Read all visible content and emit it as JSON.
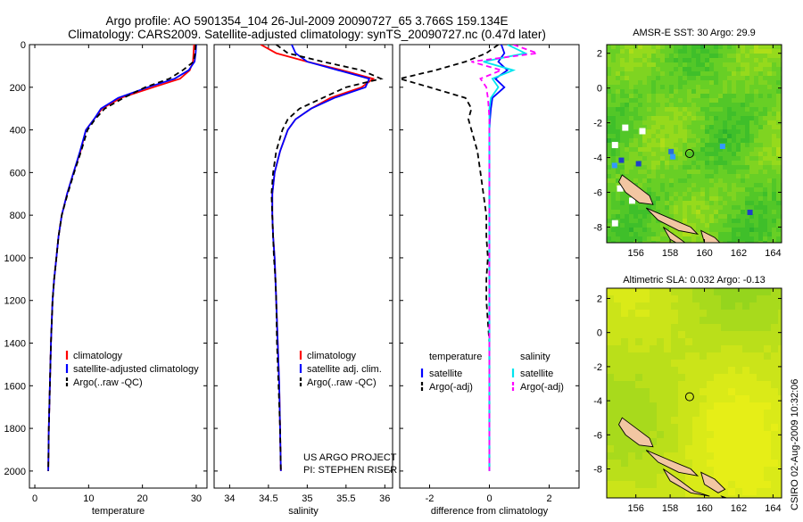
{
  "header": {
    "line1": "Argo profile: AO 5901354_104 26-Jul-2009 20090727_65 3.766S 159.134E",
    "line2": "Climatology: CARS2009. Satellite-adjusted climatology: synTS_20090727.nc (0.47d later)"
  },
  "footer": {
    "project": "US ARGO PROJECT",
    "pi": "PI: STEPHEN RISER",
    "stamp": "CSIRO 02-Aug-2009 10:32:06"
  },
  "colors": {
    "climatology": "#ff0000",
    "satellite": "#0000ff",
    "argo": "#000000",
    "sat_diff_sal": "#00e5ee",
    "argo_diff_sal": "#ff00ff"
  },
  "chart_data": [
    {
      "type": "line",
      "xlabel": "temperature",
      "ylabel": "",
      "xlim": [
        -1,
        32
      ],
      "ylim": [
        2080,
        0
      ],
      "xticks": [
        0,
        10,
        20,
        30
      ],
      "yticks": [
        0,
        200,
        400,
        600,
        800,
        1000,
        1200,
        1400,
        1600,
        1800,
        2000
      ],
      "legend": {
        "placement": "lower-center",
        "entries": [
          "climatology",
          "satellite-adjusted climatology",
          "Argo(..raw -QC)"
        ]
      },
      "series": [
        {
          "name": "climatology",
          "color": "#ff0000",
          "dash": "",
          "x": [
            29.6,
            29.5,
            29.4,
            28.8,
            27.0,
            22.0,
            16.0,
            12.5,
            11.0,
            9.5,
            8.5,
            7.2,
            6.0,
            5.0,
            4.4,
            4.0,
            3.6,
            3.3,
            3.0,
            2.8,
            2.6,
            2.5
          ],
          "y": [
            0,
            40,
            80,
            120,
            160,
            200,
            250,
            300,
            350,
            400,
            500,
            600,
            700,
            800,
            900,
            1000,
            1100,
            1200,
            1400,
            1600,
            1800,
            2000
          ]
        },
        {
          "name": "satellite-adjusted climatology",
          "color": "#0000ff",
          "dash": "",
          "x": [
            30.0,
            29.9,
            29.7,
            28.6,
            26.0,
            21.0,
            15.5,
            12.3,
            11.0,
            9.5,
            8.4,
            7.2,
            6.0,
            5.0,
            4.4,
            4.0,
            3.6,
            3.3,
            3.0,
            2.8,
            2.6,
            2.5
          ],
          "y": [
            0,
            40,
            80,
            120,
            160,
            200,
            250,
            300,
            350,
            400,
            500,
            600,
            700,
            800,
            900,
            1000,
            1100,
            1200,
            1400,
            1600,
            1800,
            2000
          ]
        },
        {
          "name": "Argo(..raw -QC)",
          "color": "#000000",
          "dash": "6,4",
          "x": [
            29.9,
            29.8,
            29.5,
            27.5,
            25.0,
            20.5,
            16.5,
            13.0,
            11.2,
            9.8,
            8.6,
            7.3,
            6.1,
            5.0,
            4.4,
            4.0,
            3.6,
            3.3,
            3.0,
            2.8,
            2.6,
            2.5
          ],
          "y": [
            0,
            40,
            80,
            120,
            160,
            200,
            250,
            300,
            350,
            400,
            500,
            600,
            700,
            800,
            900,
            1000,
            1100,
            1200,
            1400,
            1600,
            1800,
            2000
          ]
        }
      ]
    },
    {
      "type": "line",
      "xlabel": "salinity",
      "ylabel": "",
      "xlim": [
        33.8,
        36.1
      ],
      "ylim": [
        2080,
        0
      ],
      "xticks": [
        34,
        34.5,
        35,
        35.5,
        36
      ],
      "yticks": [],
      "legend": {
        "placement": "lower-center",
        "entries": [
          "climatology",
          "satellite adj. clim.",
          "Argo(..raw -QC)"
        ]
      },
      "series": [
        {
          "name": "climatology",
          "color": "#ff0000",
          "dash": "",
          "x": [
            34.4,
            34.6,
            35.0,
            35.45,
            35.85,
            35.7,
            35.3,
            35.05,
            34.85,
            34.75,
            34.65,
            34.58,
            34.55,
            34.55,
            34.56,
            34.58,
            34.59,
            34.6,
            34.62,
            34.64,
            34.65,
            34.66
          ],
          "y": [
            0,
            40,
            80,
            120,
            160,
            200,
            250,
            300,
            350,
            400,
            500,
            600,
            700,
            800,
            900,
            1000,
            1100,
            1200,
            1400,
            1600,
            1800,
            2000
          ]
        },
        {
          "name": "satellite adj. clim.",
          "color": "#0000ff",
          "dash": "",
          "x": [
            34.8,
            34.85,
            35.0,
            35.4,
            35.8,
            35.75,
            35.35,
            35.05,
            34.85,
            34.75,
            34.65,
            34.58,
            34.55,
            34.55,
            34.56,
            34.58,
            34.59,
            34.6,
            34.62,
            34.64,
            34.65,
            34.66
          ],
          "y": [
            0,
            40,
            80,
            120,
            160,
            200,
            250,
            300,
            350,
            400,
            500,
            600,
            700,
            800,
            900,
            1000,
            1100,
            1200,
            1400,
            1600,
            1800,
            2000
          ]
        },
        {
          "name": "Argo(..raw -QC)",
          "color": "#000000",
          "dash": "6,4",
          "x": [
            34.6,
            34.75,
            35.2,
            35.7,
            35.95,
            35.5,
            35.2,
            34.9,
            34.75,
            34.68,
            34.6,
            34.56,
            34.54,
            34.55,
            34.56,
            34.57,
            34.59,
            34.6,
            34.61,
            34.63,
            34.65,
            34.66
          ],
          "y": [
            0,
            40,
            80,
            120,
            160,
            200,
            250,
            300,
            350,
            400,
            500,
            600,
            700,
            800,
            900,
            1000,
            1100,
            1200,
            1400,
            1600,
            1800,
            2000
          ]
        }
      ]
    },
    {
      "type": "line",
      "xlabel": "difference from climatology",
      "ylabel": "",
      "xlim": [
        -3,
        3
      ],
      "ylim": [
        2080,
        0
      ],
      "xticks": [
        -2,
        0,
        2
      ],
      "yticks": [],
      "legend": {
        "placement": "lower-center",
        "headers": [
          "temperature",
          "salinity"
        ],
        "entries": [
          "satellite",
          "Argo(-adj)",
          "satellite",
          "Argo(-adj)"
        ]
      },
      "series": [
        {
          "name": "satellite",
          "color": "#0000ff",
          "dash": "",
          "x": [
            0.4,
            0.5,
            0.3,
            0.6,
            0.2,
            0.5,
            0.1,
            0.05,
            0.02,
            0.0,
            0.0,
            0.0,
            0.0,
            0.0,
            0.0,
            0.0,
            0.0,
            0.0,
            0.0,
            0.0,
            0.0,
            0.0
          ],
          "y": [
            0,
            40,
            80,
            120,
            160,
            200,
            250,
            300,
            350,
            400,
            500,
            600,
            700,
            800,
            900,
            1000,
            1100,
            1200,
            1400,
            1600,
            1800,
            2000
          ]
        },
        {
          "name": "Argo(-adj)",
          "color": "#000000",
          "dash": "6,4",
          "x": [
            0.3,
            -0.1,
            -0.8,
            -1.8,
            -3.0,
            -2.0,
            -0.8,
            -0.6,
            -0.7,
            -0.6,
            -0.4,
            -0.3,
            -0.2,
            -0.1,
            -0.1,
            -0.05,
            -0.1,
            -0.1,
            0.0,
            0.0,
            0.0,
            0.0
          ],
          "y": [
            0,
            40,
            80,
            120,
            160,
            200,
            250,
            300,
            350,
            400,
            500,
            600,
            700,
            800,
            900,
            1000,
            1100,
            1200,
            1400,
            1600,
            1800,
            2000
          ]
        },
        {
          "name": "satellite",
          "color": "#00e5ee",
          "dash": "",
          "x": [
            0.6,
            1.2,
            -0.2,
            0.8,
            0.1,
            0.3,
            0.05,
            0.0,
            0.0,
            0.0,
            0.0,
            0.0,
            0.0,
            0.0,
            0.0,
            0.0,
            0.0,
            0.0,
            0.0,
            0.0,
            0.0,
            0.0
          ],
          "y": [
            0,
            40,
            80,
            120,
            160,
            200,
            250,
            300,
            350,
            400,
            500,
            600,
            700,
            800,
            900,
            1000,
            1100,
            1200,
            1400,
            1600,
            1800,
            2000
          ]
        },
        {
          "name": "Argo(-adj)",
          "color": "#ff00ff",
          "dash": "6,4",
          "x": [
            0.8,
            1.6,
            -0.6,
            0.4,
            -0.3,
            -0.1,
            -0.05,
            -0.02,
            0.0,
            0.0,
            0.0,
            0.0,
            0.0,
            0.0,
            0.0,
            0.0,
            0.0,
            0.0,
            0.0,
            0.0,
            0.0,
            0.0
          ],
          "y": [
            0,
            40,
            80,
            120,
            160,
            200,
            250,
            300,
            350,
            400,
            500,
            600,
            700,
            800,
            900,
            1000,
            1100,
            1200,
            1400,
            1600,
            1800,
            2000
          ]
        }
      ]
    },
    {
      "type": "heatmap",
      "title": "AMSR-E SST: 30 Argo: 29.9",
      "xlim": [
        154.3,
        164.5
      ],
      "ylim": [
        -8.9,
        2.5
      ],
      "xticks": [
        156,
        158,
        160,
        162,
        164
      ],
      "yticks": [
        2,
        0,
        -2,
        -4,
        -6,
        -8
      ],
      "marker": {
        "lon": 159.134,
        "lat": -3.766
      },
      "palette": [
        "#2db22d",
        "#3fbf2a",
        "#52c728",
        "#68cf25",
        "#7fd421",
        "#96da1c",
        "#aede18",
        "#c5e315"
      ]
    },
    {
      "type": "heatmap",
      "title": "Altimetric SLA: 0.032 Argo: -0.13",
      "xlim": [
        154.3,
        164.5
      ],
      "ylim": [
        -9.7,
        2.6
      ],
      "xticks": [
        156,
        158,
        160,
        162,
        164
      ],
      "yticks": [
        2,
        0,
        -2,
        -4,
        -6,
        -8
      ],
      "marker": {
        "lon": 159.134,
        "lat": -3.766
      },
      "palette": [
        "#6cc81e",
        "#80ce1f",
        "#95d51d",
        "#a8da1c",
        "#badf1a",
        "#cbe419",
        "#daea18",
        "#e6ee17"
      ]
    }
  ]
}
